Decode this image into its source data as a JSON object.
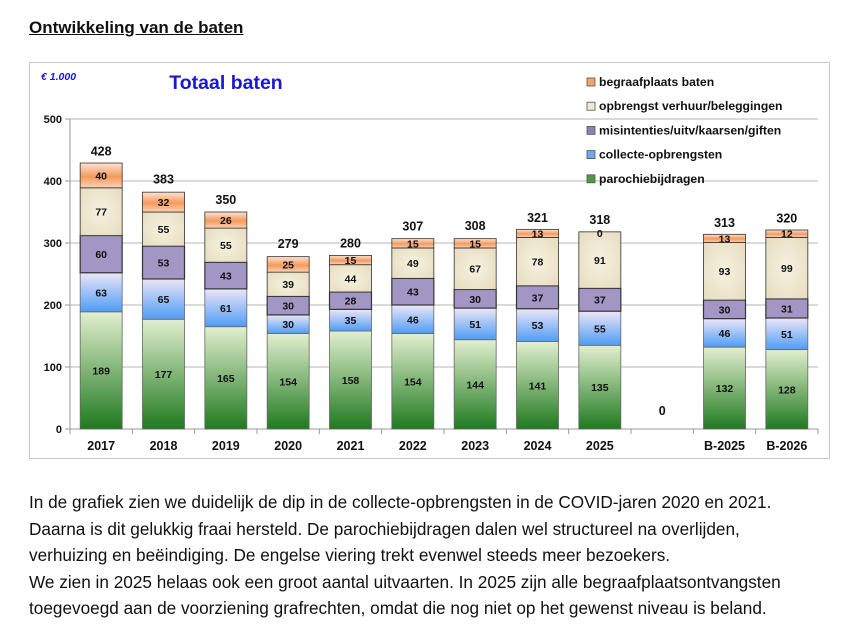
{
  "page": {
    "heading": "Ontwikkeling van de baten",
    "paragraph_lines": [
      "In de grafiek zien we duidelijk de dip in de collecte-opbrengsten in de COVID-jaren 2020 en 2021.",
      "Daarna is dit gelukkig fraai hersteld. De parochiebijdragen dalen wel structureel na overlijden,",
      "verhuizing en beëindiging. De engelse viering trekt evenwel steeds meer bezoekers.",
      "We zien in 2025 helaas ook een groot aantal uitvaarten. In 2025 zijn alle begraafplaatsontvangsten",
      "toegevoegd aan de voorziening grafrechten, omdat die nog niet op het gewenst niveau is beland."
    ]
  },
  "chart_data": {
    "type": "bar",
    "stacked": true,
    "title": "Totaal baten",
    "unit_label": "€ 1.000",
    "xlabel": "",
    "ylabel": "",
    "ylim": [
      0,
      500
    ],
    "yticks": [
      0,
      100,
      200,
      300,
      400,
      500
    ],
    "grid": true,
    "legend_position": "top-right",
    "categories": [
      "2017",
      "2018",
      "2019",
      "2020",
      "2021",
      "2022",
      "2023",
      "2024",
      "2025",
      "",
      "B-2025",
      "B-2026"
    ],
    "series": [
      {
        "name": "parochiebijdragen",
        "color_top": "#e2efcf",
        "color_bottom": "#1f7a1f",
        "legend_color": "#4f9a3f",
        "values": [
          189,
          177,
          165,
          154,
          158,
          154,
          144,
          141,
          135,
          0,
          132,
          128
        ]
      },
      {
        "name": "collecte-opbrengsten",
        "color_top": "#ece6f7",
        "color_bottom": "#4f9cf5",
        "legend_color": "#6fa8ee",
        "values": [
          63,
          65,
          61,
          30,
          35,
          46,
          51,
          53,
          55,
          0,
          46,
          51
        ]
      },
      {
        "name": "misintenties/uitv/kaarsen/giften",
        "color_top": "#a496c4",
        "color_bottom": "#a496c4",
        "legend_color": "#8f80b2",
        "values": [
          60,
          53,
          43,
          30,
          28,
          43,
          30,
          37,
          37,
          0,
          30,
          31
        ]
      },
      {
        "name": "opbrengst verhuur/beleggingen",
        "color_top": "#f6f1e0",
        "color_bottom": "#e6dcbf",
        "legend_color": "#efe8d2",
        "values": [
          77,
          55,
          55,
          39,
          44,
          49,
          67,
          78,
          91,
          0,
          93,
          99
        ]
      },
      {
        "name": "begraafplaats baten",
        "color_top": "#fde2d2",
        "color_bottom": "#f49a5c",
        "legend_color": "#f4a46c",
        "values": [
          40,
          32,
          26,
          25,
          15,
          15,
          15,
          13,
          0,
          0,
          13,
          12
        ]
      }
    ],
    "totals": [
      428,
      383,
      350,
      279,
      280,
      307,
      308,
      321,
      318,
      0,
      313,
      320
    ],
    "legend_order": [
      "begraafplaats baten",
      "opbrengst verhuur/beleggingen",
      "misintenties/uitv/kaarsen/giften",
      "collecte-opbrengsten",
      "parochiebijdragen"
    ]
  }
}
